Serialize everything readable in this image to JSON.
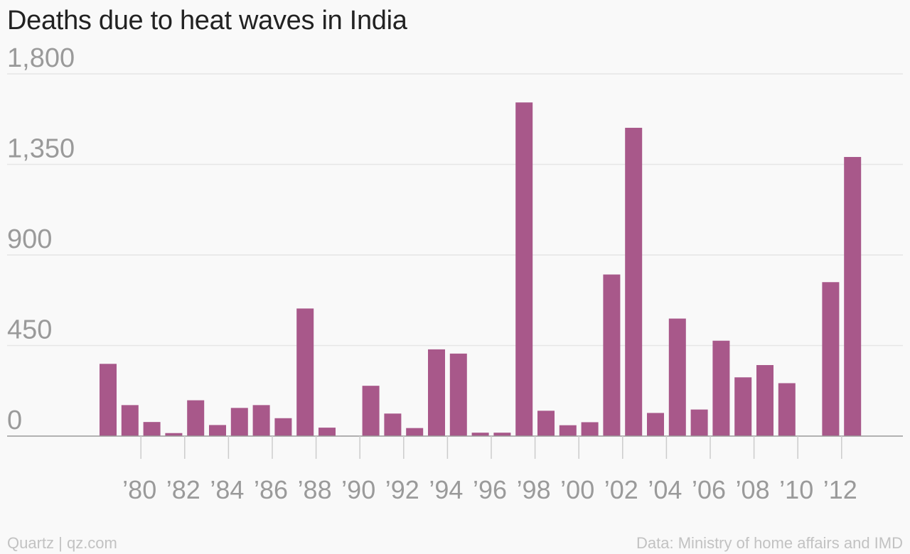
{
  "title": "Deaths due to heat waves in India",
  "footer": {
    "left": "Quartz | qz.com",
    "right": "Data: Ministry of home affairs and IMD"
  },
  "colors": {
    "bar": "#a8588a",
    "grid": "#e6e6e6",
    "axis": "#9a9a9a"
  },
  "chart_data": {
    "type": "bar",
    "title": "Deaths due to heat waves in India",
    "xlabel": "",
    "ylabel": "",
    "categories": [
      1979,
      1980,
      1981,
      1982,
      1983,
      1984,
      1985,
      1986,
      1987,
      1988,
      1989,
      1990,
      1991,
      1992,
      1993,
      1994,
      1995,
      1996,
      1997,
      1998,
      1999,
      2000,
      2001,
      2002,
      2003,
      2004,
      2005,
      2006,
      2007,
      2008,
      2009,
      2010,
      2011,
      2012,
      2013
    ],
    "values": [
      359,
      154,
      70,
      15,
      178,
      55,
      140,
      154,
      89,
      634,
      42,
      2,
      250,
      112,
      40,
      431,
      410,
      17,
      17,
      1658,
      126,
      54,
      69,
      803,
      1532,
      115,
      584,
      132,
      474,
      292,
      353,
      263,
      0,
      765,
      1387
    ],
    "ylim": [
      0,
      1800
    ],
    "yticks": [
      0,
      450,
      900,
      1350,
      1800
    ],
    "ytick_labels": [
      "0",
      "450",
      "900",
      "1,350",
      "1,800"
    ],
    "xticks": [
      1980,
      1982,
      1984,
      1986,
      1988,
      1990,
      1992,
      1994,
      1996,
      1998,
      2000,
      2002,
      2004,
      2006,
      2008,
      2010,
      2012
    ],
    "xtick_labels": [
      "’80",
      "’82",
      "’84",
      "’86",
      "’88",
      "’90",
      "’92",
      "’94",
      "’96",
      "’98",
      "’00",
      "’02",
      "’04",
      "’06",
      "’08",
      "’10",
      "’12"
    ],
    "grid": true,
    "legend": "none"
  }
}
